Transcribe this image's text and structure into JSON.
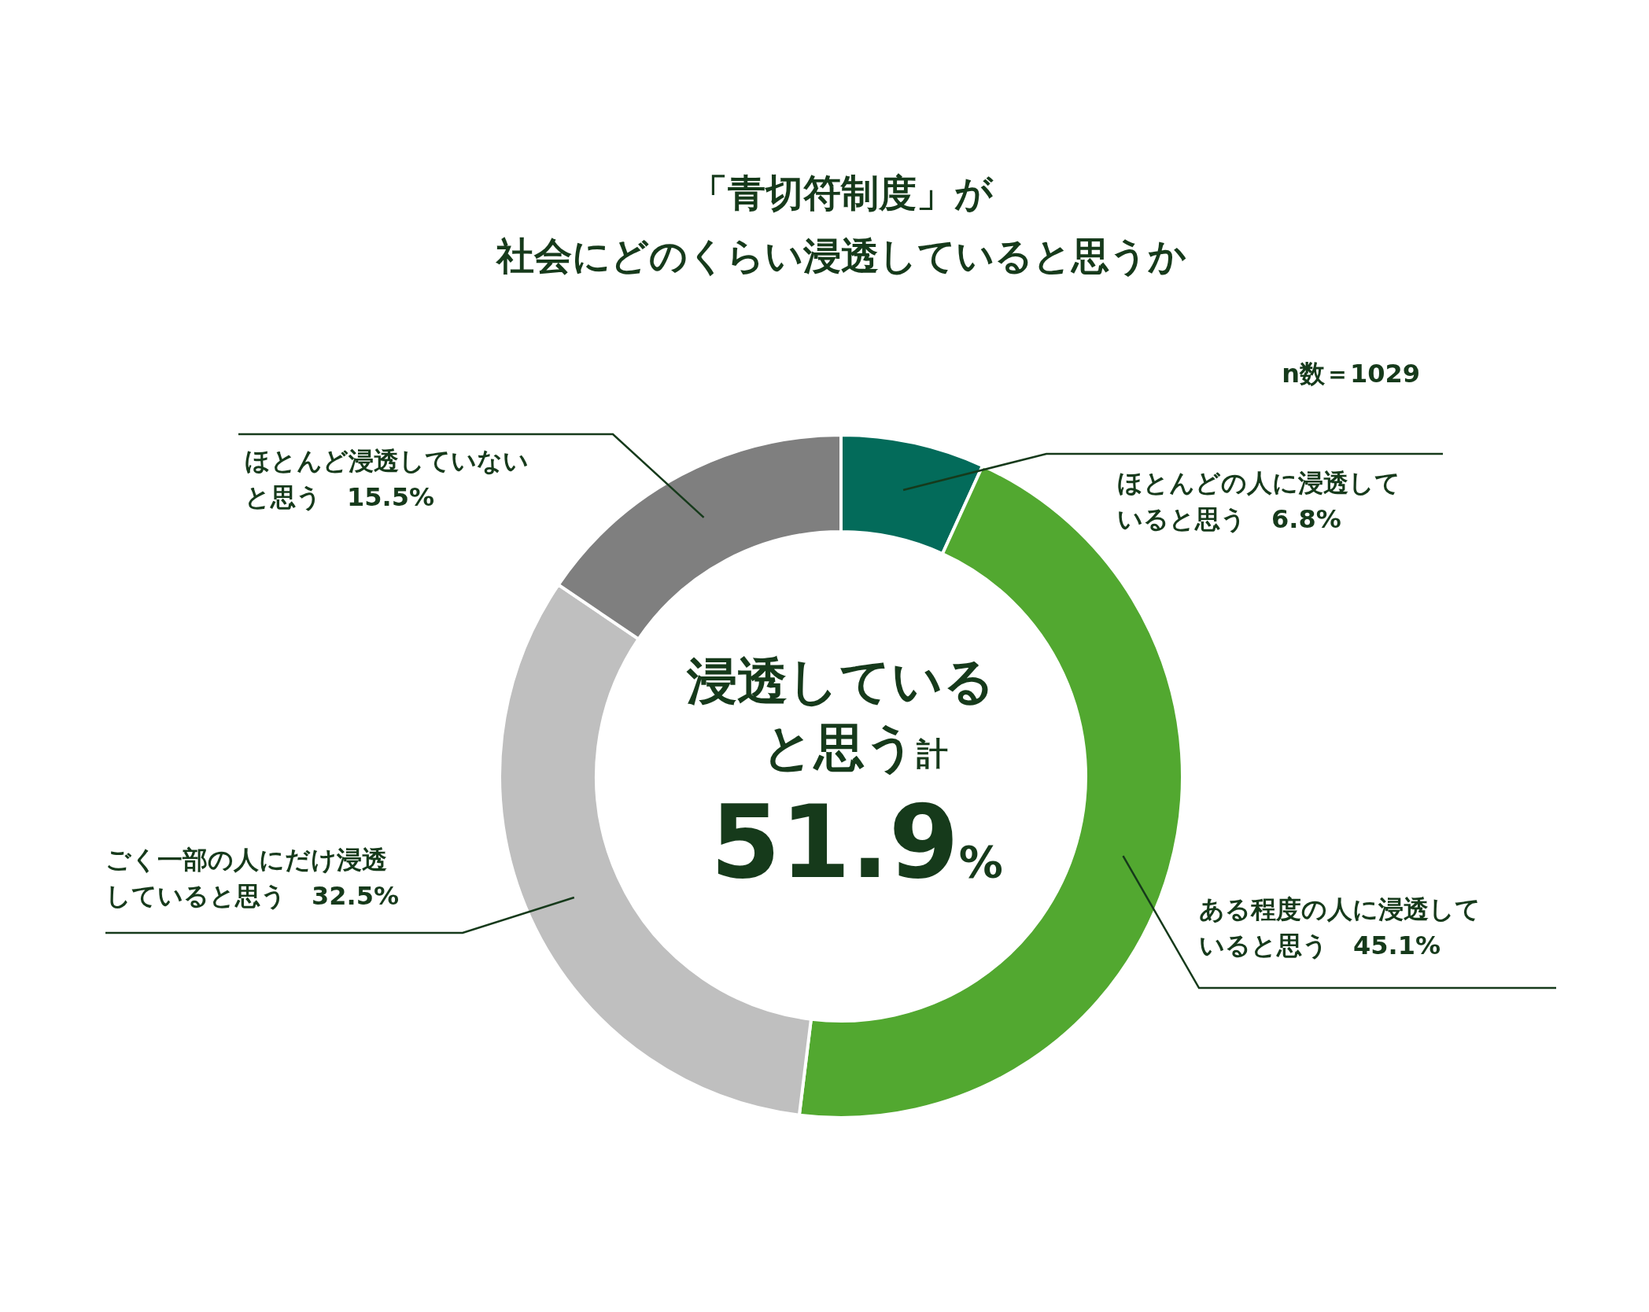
{
  "chart_data": {
    "type": "donut",
    "title": "「青切符制度」が社会にどのくらい浸透していると思うか",
    "categories": [
      "ほとんどの人に浸透していると思う",
      "ある程度の人に浸透していると思う",
      "ごく一部の人にだけ浸透していると思う",
      "ほとんど浸透していないと思う"
    ],
    "values": [
      6.8,
      45.1,
      32.5,
      15.5
    ],
    "value_labels": [
      "6.8%",
      "45.1%",
      "32.5%",
      "15.5%"
    ],
    "colors": [
      "#036b5a",
      "#52a830",
      "#bfbfbf",
      "#7f7f7f"
    ],
    "annotations": [
      "浸透していると思う計",
      "51.9%",
      "n数＝1029"
    ]
  }
}
